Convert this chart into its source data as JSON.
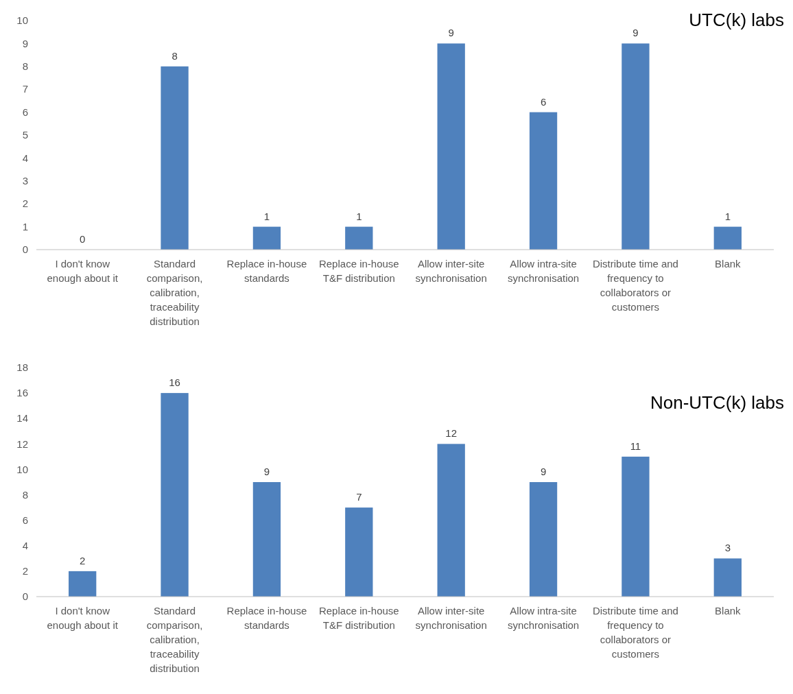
{
  "chart_data": [
    {
      "type": "bar",
      "title": "UTC(k) labs",
      "categories": [
        "I don't know enough about it",
        "Standard comparison, calibration, traceability distribution",
        "Replace in-house standards",
        "Replace in-house T&F distribution",
        "Allow inter-site synchronisation",
        "Allow intra-site synchronisation",
        "Distribute time and frequency to collaborators or customers",
        "Blank"
      ],
      "values": [
        0,
        8,
        1,
        1,
        9,
        6,
        9,
        1
      ],
      "color": "#4f81bd",
      "ylim": [
        0,
        10
      ],
      "yticks": [
        0,
        1,
        2,
        3,
        4,
        5,
        6,
        7,
        8,
        9,
        10
      ],
      "grid": false,
      "data_labels": true
    },
    {
      "type": "bar",
      "title": "Non-UTC(k) labs",
      "categories": [
        "I don't know enough about it",
        "Standard comparison, calibration, traceability distribution",
        "Replace in-house standards",
        "Replace in-house T&F distribution",
        "Allow inter-site synchronisation",
        "Allow intra-site synchronisation",
        "Distribute time and frequency to collaborators or customers",
        "Blank"
      ],
      "values": [
        2,
        16,
        9,
        7,
        12,
        9,
        11,
        3
      ],
      "color": "#4f81bd",
      "ylim": [
        0,
        18
      ],
      "yticks": [
        0,
        2,
        4,
        6,
        8,
        10,
        12,
        14,
        16,
        18
      ],
      "grid": false,
      "data_labels": true
    }
  ]
}
